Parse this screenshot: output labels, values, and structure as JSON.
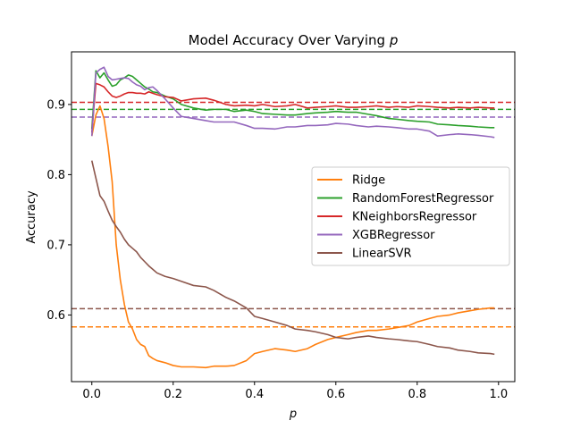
{
  "chart_data": {
    "type": "line",
    "title": "Model Accuracy Over Varying p",
    "title_main": "Model Accuracy Over Varying ",
    "title_var": "p",
    "xlabel": "p",
    "ylabel": "Accuracy",
    "xlim": [
      -0.05,
      1.04
    ],
    "ylim": [
      0.505,
      0.975
    ],
    "xticks": [
      0.0,
      0.2,
      0.4,
      0.6,
      0.8,
      1.0
    ],
    "xtick_labels": [
      "0.0",
      "0.2",
      "0.4",
      "0.6",
      "0.8",
      "1.0"
    ],
    "yticks": [
      0.6,
      0.7,
      0.8,
      0.9
    ],
    "ytick_labels": [
      "0.6",
      "0.7",
      "0.8",
      "0.9"
    ],
    "grid": false,
    "legend_position": "center-right",
    "series": [
      {
        "name": "Ridge",
        "color": "#ff7f0e",
        "x": [
          0.0,
          0.01,
          0.02,
          0.03,
          0.04,
          0.05,
          0.06,
          0.07,
          0.08,
          0.09,
          0.1,
          0.11,
          0.12,
          0.13,
          0.14,
          0.15,
          0.16,
          0.18,
          0.2,
          0.22,
          0.25,
          0.28,
          0.3,
          0.33,
          0.35,
          0.38,
          0.4,
          0.42,
          0.45,
          0.48,
          0.5,
          0.53,
          0.55,
          0.58,
          0.6,
          0.63,
          0.65,
          0.68,
          0.7,
          0.73,
          0.75,
          0.78,
          0.8,
          0.83,
          0.85,
          0.88,
          0.9,
          0.93,
          0.95,
          0.98,
          0.99
        ],
        "values": [
          0.855,
          0.885,
          0.898,
          0.88,
          0.84,
          0.79,
          0.7,
          0.65,
          0.615,
          0.59,
          0.58,
          0.565,
          0.558,
          0.555,
          0.542,
          0.538,
          0.535,
          0.532,
          0.528,
          0.526,
          0.526,
          0.525,
          0.527,
          0.527,
          0.528,
          0.535,
          0.545,
          0.548,
          0.552,
          0.55,
          0.548,
          0.552,
          0.558,
          0.565,
          0.568,
          0.572,
          0.575,
          0.578,
          0.578,
          0.58,
          0.582,
          0.585,
          0.59,
          0.595,
          0.598,
          0.6,
          0.603,
          0.606,
          0.608,
          0.61,
          0.61
        ]
      },
      {
        "name": "RandomForestRegressor",
        "color": "#2ca02c",
        "x": [
          0.0,
          0.01,
          0.02,
          0.03,
          0.04,
          0.05,
          0.06,
          0.07,
          0.08,
          0.09,
          0.1,
          0.11,
          0.12,
          0.13,
          0.14,
          0.15,
          0.16,
          0.18,
          0.2,
          0.22,
          0.25,
          0.28,
          0.3,
          0.33,
          0.35,
          0.38,
          0.4,
          0.42,
          0.45,
          0.48,
          0.5,
          0.53,
          0.55,
          0.58,
          0.6,
          0.63,
          0.65,
          0.68,
          0.7,
          0.73,
          0.75,
          0.78,
          0.8,
          0.83,
          0.85,
          0.88,
          0.9,
          0.93,
          0.95,
          0.98,
          0.99
        ],
        "values": [
          0.865,
          0.948,
          0.938,
          0.945,
          0.935,
          0.926,
          0.928,
          0.935,
          0.938,
          0.942,
          0.94,
          0.935,
          0.93,
          0.925,
          0.922,
          0.918,
          0.917,
          0.912,
          0.908,
          0.9,
          0.895,
          0.892,
          0.893,
          0.893,
          0.89,
          0.892,
          0.89,
          0.887,
          0.886,
          0.885,
          0.885,
          0.887,
          0.888,
          0.889,
          0.89,
          0.889,
          0.889,
          0.886,
          0.884,
          0.88,
          0.879,
          0.877,
          0.876,
          0.875,
          0.872,
          0.871,
          0.87,
          0.869,
          0.868,
          0.867,
          0.867
        ]
      },
      {
        "name": "KNeighborsRegressor",
        "color": "#d62728",
        "x": [
          0.0,
          0.01,
          0.02,
          0.03,
          0.04,
          0.05,
          0.06,
          0.07,
          0.08,
          0.09,
          0.1,
          0.11,
          0.12,
          0.13,
          0.14,
          0.15,
          0.16,
          0.18,
          0.2,
          0.22,
          0.25,
          0.28,
          0.3,
          0.33,
          0.35,
          0.38,
          0.4,
          0.42,
          0.45,
          0.48,
          0.5,
          0.53,
          0.55,
          0.58,
          0.6,
          0.63,
          0.65,
          0.68,
          0.7,
          0.73,
          0.75,
          0.78,
          0.8,
          0.83,
          0.85,
          0.88,
          0.9,
          0.93,
          0.95,
          0.98,
          0.99
        ],
        "values": [
          0.86,
          0.93,
          0.928,
          0.925,
          0.918,
          0.912,
          0.91,
          0.912,
          0.915,
          0.917,
          0.917,
          0.916,
          0.916,
          0.915,
          0.918,
          0.916,
          0.914,
          0.911,
          0.91,
          0.905,
          0.908,
          0.909,
          0.906,
          0.9,
          0.898,
          0.899,
          0.898,
          0.9,
          0.897,
          0.898,
          0.9,
          0.895,
          0.896,
          0.897,
          0.898,
          0.896,
          0.896,
          0.897,
          0.898,
          0.896,
          0.897,
          0.896,
          0.898,
          0.897,
          0.896,
          0.895,
          0.896,
          0.895,
          0.896,
          0.895,
          0.895
        ]
      },
      {
        "name": "XGBRegressor",
        "color": "#9467bd",
        "x": [
          0.0,
          0.01,
          0.02,
          0.03,
          0.04,
          0.05,
          0.06,
          0.07,
          0.08,
          0.09,
          0.1,
          0.11,
          0.12,
          0.13,
          0.14,
          0.15,
          0.16,
          0.18,
          0.2,
          0.22,
          0.25,
          0.28,
          0.3,
          0.33,
          0.35,
          0.38,
          0.4,
          0.42,
          0.45,
          0.48,
          0.5,
          0.53,
          0.55,
          0.58,
          0.6,
          0.63,
          0.65,
          0.68,
          0.7,
          0.73,
          0.75,
          0.78,
          0.8,
          0.83,
          0.85,
          0.88,
          0.9,
          0.93,
          0.95,
          0.98,
          0.99
        ],
        "values": [
          0.855,
          0.945,
          0.95,
          0.953,
          0.94,
          0.935,
          0.936,
          0.937,
          0.938,
          0.937,
          0.932,
          0.928,
          0.926,
          0.921,
          0.924,
          0.925,
          0.92,
          0.908,
          0.895,
          0.883,
          0.88,
          0.877,
          0.875,
          0.875,
          0.875,
          0.87,
          0.866,
          0.866,
          0.865,
          0.868,
          0.868,
          0.87,
          0.87,
          0.871,
          0.873,
          0.872,
          0.87,
          0.868,
          0.869,
          0.868,
          0.867,
          0.865,
          0.865,
          0.862,
          0.855,
          0.857,
          0.858,
          0.857,
          0.856,
          0.854,
          0.853
        ]
      },
      {
        "name": "LinearSVR",
        "color": "#8c564b",
        "x": [
          0.0,
          0.01,
          0.02,
          0.03,
          0.04,
          0.05,
          0.06,
          0.07,
          0.08,
          0.09,
          0.1,
          0.11,
          0.12,
          0.13,
          0.14,
          0.15,
          0.16,
          0.18,
          0.2,
          0.22,
          0.25,
          0.28,
          0.3,
          0.33,
          0.35,
          0.38,
          0.4,
          0.42,
          0.45,
          0.48,
          0.5,
          0.53,
          0.55,
          0.58,
          0.6,
          0.63,
          0.65,
          0.68,
          0.7,
          0.73,
          0.75,
          0.78,
          0.8,
          0.83,
          0.85,
          0.88,
          0.9,
          0.93,
          0.95,
          0.98,
          0.99
        ],
        "values": [
          0.82,
          0.795,
          0.77,
          0.762,
          0.748,
          0.735,
          0.726,
          0.718,
          0.708,
          0.7,
          0.695,
          0.69,
          0.682,
          0.676,
          0.67,
          0.665,
          0.66,
          0.655,
          0.652,
          0.648,
          0.642,
          0.64,
          0.635,
          0.625,
          0.62,
          0.61,
          0.598,
          0.595,
          0.59,
          0.585,
          0.58,
          0.578,
          0.576,
          0.572,
          0.568,
          0.566,
          0.568,
          0.57,
          0.568,
          0.566,
          0.565,
          0.563,
          0.562,
          0.558,
          0.555,
          0.553,
          0.55,
          0.548,
          0.546,
          0.545,
          0.544
        ]
      }
    ],
    "hlines": [
      {
        "y": 0.903,
        "color": "#d62728"
      },
      {
        "y": 0.893,
        "color": "#2ca02c"
      },
      {
        "y": 0.882,
        "color": "#9467bd"
      },
      {
        "y": 0.609,
        "color": "#8c564b"
      },
      {
        "y": 0.583,
        "color": "#ff7f0e"
      }
    ]
  }
}
